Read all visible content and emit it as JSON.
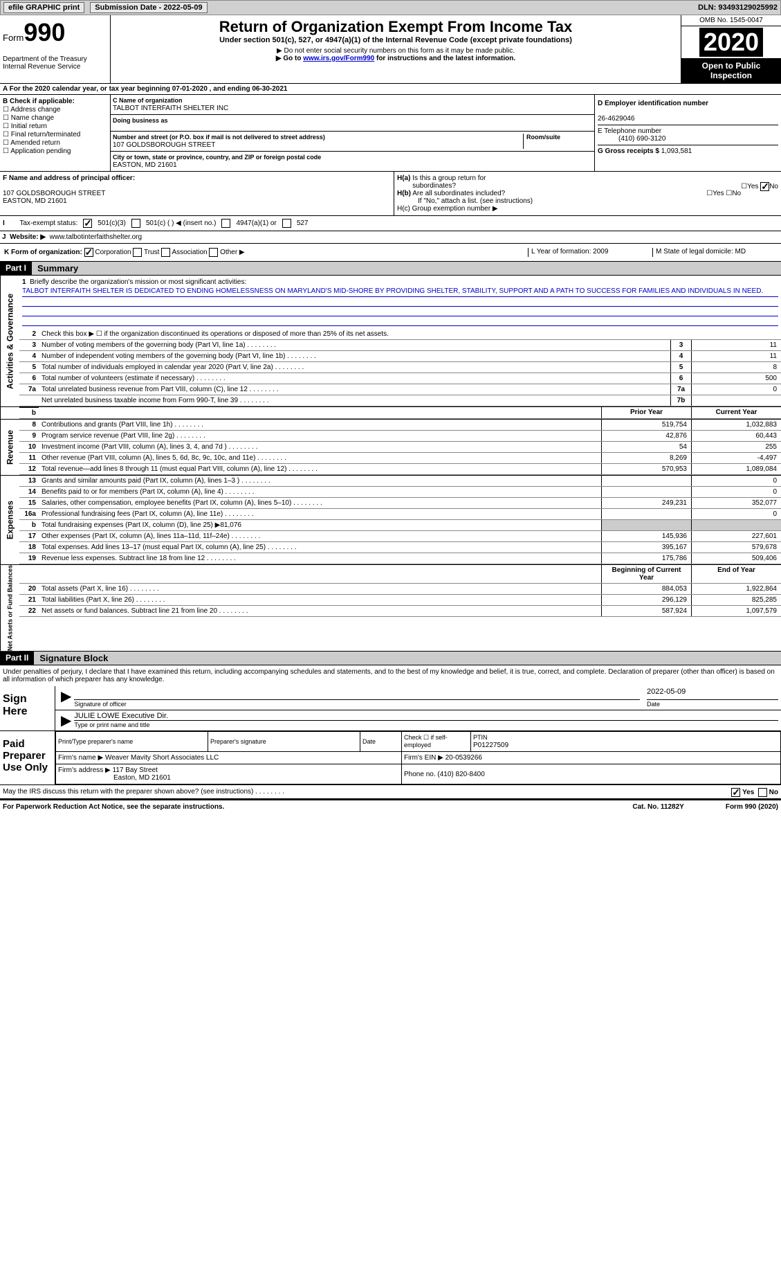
{
  "topbar": {
    "efile": "efile GRAPHIC print",
    "submission": "Submission Date - 2022-05-09",
    "dln": "DLN: 93493129025992"
  },
  "header": {
    "form_label": "Form",
    "form_num": "990",
    "dept": "Department of the Treasury",
    "irs": "Internal Revenue Service",
    "title": "Return of Organization Exempt From Income Tax",
    "subtitle": "Under section 501(c), 527, or 4947(a)(1) of the Internal Revenue Code (except private foundations)",
    "note1": "▶ Do not enter social security numbers on this form as it may be made public.",
    "note2_pre": "▶ Go to ",
    "note2_link": "www.irs.gov/Form990",
    "note2_post": " for instructions and the latest information.",
    "omb": "OMB No. 1545-0047",
    "year": "2020",
    "inspection": "Open to Public Inspection"
  },
  "period": "For the 2020 calendar year, or tax year beginning 07-01-2020    , and ending 06-30-2021",
  "section_b": {
    "title": "B Check if applicable:",
    "items": [
      "Address change",
      "Name change",
      "Initial return",
      "Final return/terminated",
      "Amended return",
      "Application pending"
    ]
  },
  "section_c": {
    "name_label": "C Name of organization",
    "name": "TALBOT INTERFAITH SHELTER INC",
    "dba_label": "Doing business as",
    "addr_label": "Number and street (or P.O. box if mail is not delivered to street address)",
    "room_label": "Room/suite",
    "addr": "107 GOLDSBOROUGH STREET",
    "city_label": "City or town, state or province, country, and ZIP or foreign postal code",
    "city": "EASTON, MD  21601"
  },
  "section_d": {
    "ein_label": "D Employer identification number",
    "ein": "26-4629046",
    "phone_label": "E Telephone number",
    "phone": "(410) 690-3120",
    "gross_label": "G Gross receipts $ ",
    "gross": "1,093,581"
  },
  "section_f": {
    "label": "F Name and address of principal officer:",
    "addr1": "107 GOLDSBOROUGH STREET",
    "addr2": "EASTON, MD  21601"
  },
  "section_h": {
    "ha": "H(a)  Is this a group return for subordinates?",
    "hb": "H(b)  Are all subordinates included?",
    "hb_note": "If \"No,\" attach a list. (see instructions)",
    "hc": "H(c)  Group exemption number ▶",
    "yes": "Yes",
    "no": "No"
  },
  "tax_status": {
    "label": "Tax-exempt status:",
    "opt1": "501(c)(3)",
    "opt2": "501(c) (  ) ◀ (insert no.)",
    "opt3": "4947(a)(1) or",
    "opt4": "527"
  },
  "website": {
    "label": "Website: ▶",
    "value": "www.talbotinterfaithshelter.org"
  },
  "section_k": {
    "label": "K Form of organization:",
    "corp": "Corporation",
    "trust": "Trust",
    "assoc": "Association",
    "other": "Other ▶"
  },
  "section_lm": {
    "l": "L Year of formation: 2009",
    "m": "M State of legal domicile: MD"
  },
  "part1": {
    "header": "Part I",
    "title": "Summary",
    "sidebar_gov": "Activities & Governance",
    "sidebar_rev": "Revenue",
    "sidebar_exp": "Expenses",
    "sidebar_net": "Net Assets or Fund Balances",
    "line1_label": "Briefly describe the organization's mission or most significant activities:",
    "mission": "TALBOT INTERFAITH SHELTER IS DEDICATED TO ENDING HOMELESSNESS ON MARYLAND'S MID-SHORE BY PROVIDING SHELTER, STABILITY, SUPPORT AND A PATH TO SUCCESS FOR FAMILIES AND INDIVIDUALS IN NEED.",
    "line2": "Check this box ▶ ☐  if the organization discontinued its operations or disposed of more than 25% of its net assets.",
    "lines": [
      {
        "n": "3",
        "t": "Number of voting members of the governing body (Part VI, line 1a)",
        "b": "3",
        "v": "11"
      },
      {
        "n": "4",
        "t": "Number of independent voting members of the governing body (Part VI, line 1b)",
        "b": "4",
        "v": "11"
      },
      {
        "n": "5",
        "t": "Total number of individuals employed in calendar year 2020 (Part V, line 2a)",
        "b": "5",
        "v": "8"
      },
      {
        "n": "6",
        "t": "Total number of volunteers (estimate if necessary)",
        "b": "6",
        "v": "500"
      },
      {
        "n": "7a",
        "t": "Total unrelated business revenue from Part VIII, column (C), line 12",
        "b": "7a",
        "v": "0"
      },
      {
        "n": "",
        "t": "Net unrelated business taxable income from Form 990-T, line 39",
        "b": "7b",
        "v": ""
      }
    ],
    "col_prior": "Prior Year",
    "col_current": "Current Year",
    "col_begin": "Beginning of Current Year",
    "col_end": "End of Year",
    "rev_lines": [
      {
        "n": "8",
        "t": "Contributions and grants (Part VIII, line 1h)",
        "p": "519,754",
        "c": "1,032,883"
      },
      {
        "n": "9",
        "t": "Program service revenue (Part VIII, line 2g)",
        "p": "42,876",
        "c": "60,443"
      },
      {
        "n": "10",
        "t": "Investment income (Part VIII, column (A), lines 3, 4, and 7d )",
        "p": "54",
        "c": "255"
      },
      {
        "n": "11",
        "t": "Other revenue (Part VIII, column (A), lines 5, 6d, 8c, 9c, 10c, and 11e)",
        "p": "8,269",
        "c": "-4,497"
      },
      {
        "n": "12",
        "t": "Total revenue—add lines 8 through 11 (must equal Part VIII, column (A), line 12)",
        "p": "570,953",
        "c": "1,089,084"
      }
    ],
    "exp_lines": [
      {
        "n": "13",
        "t": "Grants and similar amounts paid (Part IX, column (A), lines 1–3 )",
        "p": "",
        "c": "0"
      },
      {
        "n": "14",
        "t": "Benefits paid to or for members (Part IX, column (A), line 4)",
        "p": "",
        "c": "0"
      },
      {
        "n": "15",
        "t": "Salaries, other compensation, employee benefits (Part IX, column (A), lines 5–10)",
        "p": "249,231",
        "c": "352,077"
      },
      {
        "n": "16a",
        "t": "Professional fundraising fees (Part IX, column (A), line 11e)",
        "p": "",
        "c": "0"
      },
      {
        "n": "b",
        "t": "Total fundraising expenses (Part IX, column (D), line 25) ▶81,076",
        "p": "shaded",
        "c": "shaded"
      },
      {
        "n": "17",
        "t": "Other expenses (Part IX, column (A), lines 11a–11d, 11f–24e)",
        "p": "145,936",
        "c": "227,601"
      },
      {
        "n": "18",
        "t": "Total expenses. Add lines 13–17 (must equal Part IX, column (A), line 25)",
        "p": "395,167",
        "c": "579,678"
      },
      {
        "n": "19",
        "t": "Revenue less expenses. Subtract line 18 from line 12",
        "p": "175,786",
        "c": "509,406"
      }
    ],
    "net_lines": [
      {
        "n": "20",
        "t": "Total assets (Part X, line 16)",
        "p": "884,053",
        "c": "1,922,864"
      },
      {
        "n": "21",
        "t": "Total liabilities (Part X, line 26)",
        "p": "296,129",
        "c": "825,285"
      },
      {
        "n": "22",
        "t": "Net assets or fund balances. Subtract line 21 from line 20",
        "p": "587,924",
        "c": "1,097,579"
      }
    ]
  },
  "part2": {
    "header": "Part II",
    "title": "Signature Block",
    "declaration": "Under penalties of perjury, I declare that I have examined this return, including accompanying schedules and statements, and to the best of my knowledge and belief, it is true, correct, and complete. Declaration of preparer (other than officer) is based on all information of which preparer has any knowledge.",
    "sign_here": "Sign Here",
    "sig_officer": "Signature of officer",
    "sig_date": "Date",
    "sig_date_val": "2022-05-09",
    "officer_name": "JULIE LOWE  Executive Dir.",
    "type_name": "Type or print name and title",
    "paid_prep": "Paid Preparer Use Only",
    "prep_name_label": "Print/Type preparer's name",
    "prep_sig_label": "Preparer's signature",
    "date_label": "Date",
    "check_if": "Check ☐ if self-employed",
    "ptin_label": "PTIN",
    "ptin": "P01227509",
    "firm_name_label": "Firm's name    ▶",
    "firm_name": "Weaver Mavity Short Associates LLC",
    "firm_ein_label": "Firm's EIN ▶",
    "firm_ein": "20-0539266",
    "firm_addr_label": "Firm's address ▶",
    "firm_addr": "117 Bay Street",
    "firm_city": "Easton, MD  21601",
    "phone_label": "Phone no.",
    "phone": "(410) 820-8400",
    "discuss": "May the IRS discuss this return with the preparer shown above? (see instructions)",
    "yes": "Yes",
    "no": "No"
  },
  "footer": {
    "paperwork": "For Paperwork Reduction Act Notice, see the separate instructions.",
    "cat": "Cat. No. 11282Y",
    "form": "Form 990 (2020)"
  }
}
